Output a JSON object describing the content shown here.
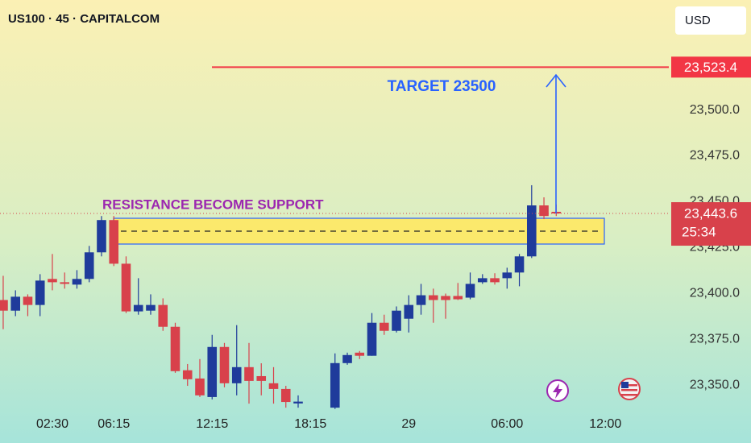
{
  "chart_data": {
    "type": "candlestick",
    "title": "US100 · 45 · CAPITALCOM",
    "currency": "USD",
    "annotations": {
      "target": "TARGET 23500",
      "zone": "RESISTANCE BECOME SUPPORT"
    },
    "target_price": {
      "value": 23523.4,
      "label": "23,523.4"
    },
    "current_price": {
      "value": 23443.6,
      "label": "23,443.6"
    },
    "countdown": "25:34",
    "up_color": "#1f3b9b",
    "down_color": "#d8414b",
    "open": [
      23396.4,
      23390.6,
      23398.2,
      23393.7,
      23407.9,
      23406.1,
      23404.8,
      23407.9,
      23422.4,
      23440.0,
      23416.2,
      23390.2,
      23390.6,
      23393.7,
      23381.8,
      23358.1,
      23353.6,
      23343.5,
      23370.8,
      23351.0,
      23359.8,
      23354.9,
      23351.0,
      23347.9,
      23340.0,
      null,
      null,
      23337.7,
      23362.0,
      23367.7,
      23366.0,
      23384.0,
      23379.6,
      23386.2,
      23393.7,
      23399.0,
      23398.6,
      23398.6,
      23397.7,
      23406.1,
      23408.3,
      23408.3,
      23411.4,
      23420.2,
      23448.0,
      23444.5
    ],
    "high": [
      23409.6,
      23401.7,
      23399.5,
      23410.5,
      23421.5,
      23411.4,
      23412.7,
      23425.9,
      23442.2,
      23442.2,
      23420.2,
      23408.3,
      23399.5,
      23397.3,
      23384.0,
      23361.5,
      23364.2,
      23377.4,
      23373.0,
      23382.7,
      23373.0,
      23361.9,
      23359.8,
      23349.6,
      23344.4,
      null,
      null,
      23367.3,
      23367.7,
      23368.6,
      23389.3,
      23388.4,
      23392.9,
      23399.0,
      23405.2,
      23402.6,
      23399.9,
      23405.7,
      23411.4,
      23410.5,
      23411.0,
      23414.0,
      23421.5,
      23459.0,
      23452.4,
      23448.5
    ],
    "low": [
      23380.5,
      23387.6,
      23387.6,
      23387.6,
      23401.7,
      23402.6,
      23402.6,
      23406.1,
      23420.2,
      23414.9,
      23389.3,
      23388.4,
      23388.4,
      23379.6,
      23356.7,
      23349.6,
      23343.5,
      23342.2,
      23348.8,
      23344.4,
      23339.9,
      23344.4,
      23339.9,
      23337.7,
      23337.7,
      null,
      null,
      23337.0,
      23361.1,
      23364.2,
      23366.0,
      23377.4,
      23378.7,
      23378.7,
      23388.4,
      23384.0,
      23386.2,
      23396.4,
      23396.8,
      23405.2,
      23404.8,
      23402.6,
      23403.9,
      23419.3,
      23440.5,
      23442.2
    ],
    "close": [
      23390.6,
      23398.2,
      23393.7,
      23407.0,
      23406.1,
      23405.2,
      23407.9,
      23422.4,
      23440.0,
      23416.2,
      23390.2,
      23393.7,
      23393.7,
      23381.8,
      23357.6,
      23353.2,
      23344.4,
      23370.8,
      23351.0,
      23359.8,
      23352.3,
      23352.3,
      23347.9,
      23340.8,
      23341.0,
      null,
      null,
      23362.0,
      23366.4,
      23366.0,
      23384.0,
      23379.6,
      23390.6,
      23393.7,
      23399.0,
      23396.4,
      23396.4,
      23396.8,
      23405.2,
      23408.3,
      23406.1,
      23411.4,
      23420.2,
      23448.0,
      23442.2,
      23443.6
    ],
    "xlim": [
      -0.26,
      54.16
    ],
    "xticks": [
      {
        "value": 4,
        "label": "02:30"
      },
      {
        "value": 9,
        "label": "06:15"
      },
      {
        "value": 17,
        "label": "12:15"
      },
      {
        "value": 25,
        "label": "18:15"
      },
      {
        "value": 33,
        "label": "29"
      },
      {
        "value": 41,
        "label": "06:00"
      },
      {
        "value": 49,
        "label": "12:00"
      }
    ],
    "ylim": [
      23336,
      23560
    ],
    "yticks": [
      {
        "value": 23350,
        "label": "23,350.0"
      },
      {
        "value": 23375,
        "label": "23,375.0"
      },
      {
        "value": 23400,
        "label": "23,400.0"
      },
      {
        "value": 23425,
        "label": "23,425.0"
      },
      {
        "value": 23450,
        "label": "23,450.0"
      },
      {
        "value": 23475,
        "label": "23,475.0"
      },
      {
        "value": 23500,
        "label": "23,500.0"
      }
    ]
  }
}
